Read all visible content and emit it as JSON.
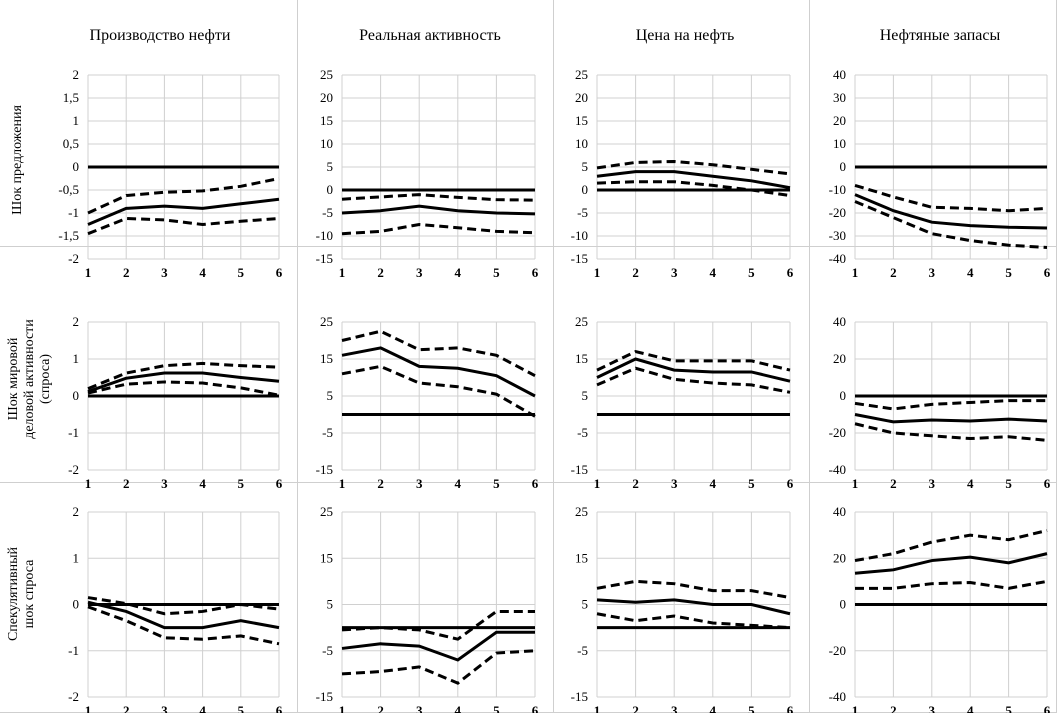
{
  "columns": [
    "Производство нефти",
    "Реальная активность",
    "Цена на нефть",
    "Нефтяные запасы"
  ],
  "rows": [
    [
      "Шок предложения"
    ],
    [
      "Шок мировой",
      "деловой активности",
      "(спроса)"
    ],
    [
      "Спекулятивный",
      "шок спроса"
    ]
  ],
  "x_ticks": [
    "1",
    "2",
    "3",
    "4",
    "5",
    "6"
  ],
  "chart_data": [
    {
      "type": "line",
      "row": 0,
      "col": 0,
      "ylim": [
        -2,
        2
      ],
      "yticks": [
        "2",
        "1,5",
        "1",
        "0,5",
        "0",
        "-0,5",
        "-1",
        "-1,5",
        "-2"
      ],
      "ytick_values": [
        2,
        1.5,
        1,
        0.5,
        0,
        -0.5,
        -1,
        -1.5,
        -2
      ],
      "x": [
        1,
        2,
        3,
        4,
        5,
        6
      ],
      "zero": 0,
      "central": [
        -1.25,
        -0.9,
        -0.85,
        -0.9,
        -0.8,
        -0.7
      ],
      "lower": [
        -1.45,
        -1.12,
        -1.15,
        -1.25,
        -1.18,
        -1.12
      ],
      "upper": [
        -1.0,
        -0.62,
        -0.55,
        -0.52,
        -0.42,
        -0.25
      ]
    },
    {
      "type": "line",
      "row": 0,
      "col": 1,
      "ylim": [
        -15,
        25
      ],
      "yticks": [
        "25",
        "20",
        "15",
        "10",
        "5",
        "0",
        "-5",
        "-10",
        "-15"
      ],
      "ytick_values": [
        25,
        20,
        15,
        10,
        5,
        0,
        -5,
        -10,
        -15
      ],
      "x": [
        1,
        2,
        3,
        4,
        5,
        6
      ],
      "zero": 0,
      "central": [
        -5,
        -4.5,
        -3.5,
        -4.5,
        -5,
        -5.2
      ],
      "lower": [
        -9.5,
        -9,
        -7.5,
        -8.2,
        -9,
        -9.3
      ],
      "upper": [
        -2,
        -1.5,
        -1,
        -1.6,
        -2.1,
        -2.2
      ]
    },
    {
      "type": "line",
      "row": 0,
      "col": 2,
      "ylim": [
        -15,
        25
      ],
      "yticks": [
        "25",
        "20",
        "15",
        "10",
        "5",
        "0",
        "-5",
        "-10",
        "-15"
      ],
      "ytick_values": [
        25,
        20,
        15,
        10,
        5,
        0,
        -5,
        -10,
        -15
      ],
      "x": [
        1,
        2,
        3,
        4,
        5,
        6
      ],
      "zero": 0,
      "central": [
        3,
        4,
        4,
        3,
        2,
        0.5
      ],
      "lower": [
        1.5,
        1.8,
        1.8,
        1,
        0,
        -1.2
      ],
      "upper": [
        4.8,
        6,
        6.2,
        5.5,
        4.5,
        3.5
      ]
    },
    {
      "type": "line",
      "row": 0,
      "col": 3,
      "ylim": [
        -40,
        40
      ],
      "yticks": [
        "40",
        "30",
        "20",
        "10",
        "0",
        "-10",
        "-20",
        "-30",
        "-40"
      ],
      "ytick_values": [
        40,
        30,
        20,
        10,
        0,
        -10,
        -20,
        -30,
        -40
      ],
      "x": [
        1,
        2,
        3,
        4,
        5,
        6
      ],
      "zero": 0,
      "central": [
        -12,
        -19,
        -24,
        -25.5,
        -26.2,
        -26.5
      ],
      "lower": [
        -15,
        -22,
        -29,
        -32,
        -34,
        -35
      ],
      "upper": [
        -8,
        -13,
        -17.5,
        -18,
        -19,
        -18
      ]
    },
    {
      "type": "line",
      "row": 1,
      "col": 0,
      "ylim": [
        -2,
        2
      ],
      "yticks": [
        "2",
        "1",
        "0",
        "-1",
        "-2"
      ],
      "ytick_values": [
        2,
        1,
        0,
        -1,
        -2
      ],
      "x": [
        1,
        2,
        3,
        4,
        5,
        6
      ],
      "zero": 0,
      "central": [
        0.12,
        0.48,
        0.62,
        0.62,
        0.5,
        0.4
      ],
      "lower": [
        0.08,
        0.32,
        0.38,
        0.35,
        0.22,
        0.02
      ],
      "upper": [
        0.2,
        0.62,
        0.82,
        0.88,
        0.82,
        0.78
      ]
    },
    {
      "type": "line",
      "row": 1,
      "col": 1,
      "ylim": [
        -15,
        25
      ],
      "yticks": [
        "25",
        "15",
        "5",
        "-5",
        "-15"
      ],
      "ytick_values": [
        25,
        15,
        5,
        -5,
        -15
      ],
      "x": [
        1,
        2,
        3,
        4,
        5,
        6
      ],
      "zero": 0,
      "central": [
        16,
        18,
        13,
        12.5,
        10.5,
        5
      ],
      "lower": [
        11,
        13,
        8.5,
        7.5,
        5.5,
        -0.5
      ],
      "upper": [
        20,
        22.5,
        17.5,
        18,
        16,
        10.5
      ]
    },
    {
      "type": "line",
      "row": 1,
      "col": 2,
      "ylim": [
        -15,
        25
      ],
      "yticks": [
        "25",
        "15",
        "5",
        "-5",
        "-15"
      ],
      "ytick_values": [
        25,
        15,
        5,
        -5,
        -15
      ],
      "x": [
        1,
        2,
        3,
        4,
        5,
        6
      ],
      "zero": 0,
      "central": [
        10,
        15,
        12,
        11.5,
        11.5,
        9
      ],
      "lower": [
        8,
        12.5,
        9.5,
        8.5,
        8,
        6
      ],
      "upper": [
        12,
        17,
        14.5,
        14.5,
        14.5,
        12
      ]
    },
    {
      "type": "line",
      "row": 1,
      "col": 3,
      "ylim": [
        -40,
        40
      ],
      "yticks": [
        "40",
        "20",
        "0",
        "-20",
        "-40"
      ],
      "ytick_values": [
        40,
        20,
        0,
        -20,
        -40
      ],
      "x": [
        1,
        2,
        3,
        4,
        5,
        6
      ],
      "zero": 0,
      "central": [
        -10,
        -14,
        -13,
        -13.5,
        -12.5,
        -13.5
      ],
      "lower": [
        -15,
        -20,
        -21.5,
        -23,
        -22,
        -24
      ],
      "upper": [
        -4,
        -7,
        -4.5,
        -3.5,
        -2.5,
        -2.5
      ]
    },
    {
      "type": "line",
      "row": 2,
      "col": 0,
      "ylim": [
        -2,
        2
      ],
      "yticks": [
        "2",
        "1",
        "0",
        "-1",
        "-2"
      ],
      "ytick_values": [
        2,
        1,
        0,
        -1,
        -2
      ],
      "x": [
        1,
        2,
        3,
        4,
        5,
        6
      ],
      "zero": 0,
      "central": [
        0.05,
        -0.15,
        -0.5,
        -0.5,
        -0.35,
        -0.5
      ],
      "lower": [
        -0.05,
        -0.35,
        -0.72,
        -0.75,
        -0.68,
        -0.85
      ],
      "upper": [
        0.15,
        0.02,
        -0.2,
        -0.15,
        0,
        -0.1
      ]
    },
    {
      "type": "line",
      "row": 2,
      "col": 1,
      "ylim": [
        -15,
        25
      ],
      "yticks": [
        "25",
        "15",
        "5",
        "-5",
        "-15"
      ],
      "ytick_values": [
        25,
        15,
        5,
        -5,
        -15
      ],
      "x": [
        1,
        2,
        3,
        4,
        5,
        6
      ],
      "zero": 0,
      "central": [
        -4.5,
        -3.5,
        -4,
        -7,
        -1,
        -1
      ],
      "lower": [
        -10,
        -9.5,
        -8.5,
        -12,
        -5.5,
        -5
      ],
      "upper": [
        -0.5,
        0,
        -0.5,
        -2.5,
        3.5,
        3.5
      ]
    },
    {
      "type": "line",
      "row": 2,
      "col": 2,
      "ylim": [
        -15,
        25
      ],
      "yticks": [
        "25",
        "15",
        "5",
        "-5",
        "-15"
      ],
      "ytick_values": [
        25,
        15,
        5,
        -5,
        -15
      ],
      "x": [
        1,
        2,
        3,
        4,
        5,
        6
      ],
      "zero": 0,
      "central": [
        6,
        5.5,
        6,
        5,
        5,
        3
      ],
      "lower": [
        3,
        1.5,
        2.5,
        1,
        0.5,
        0
      ],
      "upper": [
        8.5,
        10,
        9.5,
        8,
        8,
        6.5
      ]
    },
    {
      "type": "line",
      "row": 2,
      "col": 3,
      "ylim": [
        -40,
        40
      ],
      "yticks": [
        "40",
        "20",
        "0",
        "-20",
        "-40"
      ],
      "ytick_values": [
        40,
        20,
        0,
        -20,
        -40
      ],
      "x": [
        1,
        2,
        3,
        4,
        5,
        6
      ],
      "zero": 0,
      "central": [
        13.5,
        15,
        19,
        20.5,
        18,
        22
      ],
      "lower": [
        7,
        7,
        9,
        9.5,
        7,
        10
      ],
      "upper": [
        19,
        22,
        27,
        30,
        28,
        32
      ]
    }
  ]
}
